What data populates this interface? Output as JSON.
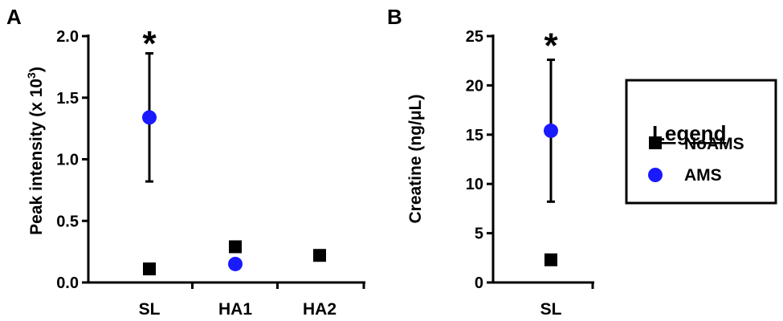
{
  "panels": {
    "A": {
      "label": "A"
    },
    "B": {
      "label": "B"
    }
  },
  "legend": {
    "title": "Legend",
    "items": [
      {
        "name": "NoAMS",
        "marker": "square",
        "color": "#000000"
      },
      {
        "name": "AMS",
        "marker": "circle",
        "color": "#1a1aff"
      }
    ]
  },
  "chart_data": [
    {
      "panel": "A",
      "type": "scatter",
      "ylabel_main": "Peak intensity (x 10",
      "ylabel_sup": "3",
      "ylabel_close": ")",
      "xlabel": "",
      "categories": [
        "SL",
        "HA1",
        "HA2"
      ],
      "ylim": [
        0,
        2.0
      ],
      "yticks": [
        "0.0",
        "0.5",
        "1.0",
        "1.5",
        "2.0"
      ],
      "ytick_values": [
        0,
        0.5,
        1.0,
        1.5,
        2.0
      ],
      "series": [
        {
          "name": "NoAMS",
          "marker": "square",
          "color": "#000000",
          "values": [
            0.11,
            0.29,
            0.22
          ],
          "err": [
            0.0,
            0.04,
            0.03
          ]
        },
        {
          "name": "AMS",
          "marker": "circle",
          "color": "#1a1aff",
          "values": [
            1.34,
            0.15,
            null
          ],
          "err": [
            0.52,
            0.0,
            null
          ]
        }
      ],
      "annotations": [
        {
          "text": "*",
          "category": "SL",
          "value": 2.0
        }
      ]
    },
    {
      "panel": "B",
      "type": "scatter",
      "ylabel_main": "Creatine (ng/μL)",
      "xlabel": "",
      "categories": [
        "SL"
      ],
      "ylim": [
        0,
        25
      ],
      "yticks": [
        "0",
        "5",
        "10",
        "15",
        "20",
        "25"
      ],
      "ytick_values": [
        0,
        5,
        10,
        15,
        20,
        25
      ],
      "series": [
        {
          "name": "NoAMS",
          "marker": "square",
          "color": "#000000",
          "values": [
            2.3
          ],
          "err": [
            0.3
          ]
        },
        {
          "name": "AMS",
          "marker": "circle",
          "color": "#1a1aff",
          "values": [
            15.4
          ],
          "err": [
            7.2
          ]
        }
      ],
      "annotations": [
        {
          "text": "*",
          "category": "SL",
          "value": 24.8
        }
      ]
    }
  ]
}
